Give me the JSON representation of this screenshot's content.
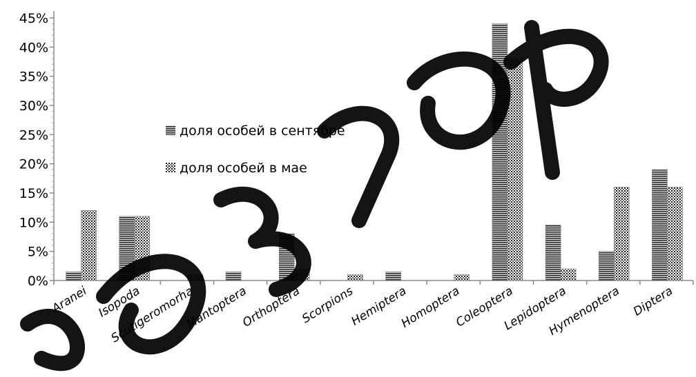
{
  "chart_data": {
    "type": "bar",
    "categories": [
      "Aranei",
      "Isopoda",
      "Scutigeromorha",
      "Mantoptera",
      "Orthoptera",
      "Scorpions",
      "Hemiptera",
      "Homoptera",
      "Coleoptera",
      "Lepidoptera",
      "Hymenoptera",
      "Diptera"
    ],
    "series": [
      {
        "name": "доля особей в сентябре",
        "pattern": "horizontal-lines",
        "values": [
          1.5,
          11,
          0,
          1.5,
          8,
          0,
          1.5,
          0,
          44,
          9.5,
          5,
          19
        ]
      },
      {
        "name": "доля особей в мае",
        "pattern": "dots",
        "values": [
          12,
          11,
          1,
          0,
          2,
          1,
          0,
          1,
          38,
          2,
          16,
          16
        ]
      }
    ],
    "yticks": [
      "0%",
      "5%",
      "10%",
      "15%",
      "20%",
      "25%",
      "30%",
      "35%",
      "40%",
      "45%"
    ],
    "ylim": [
      0,
      45
    ],
    "y_unit": "%",
    "grid": false,
    "legend_position": "inside-left",
    "colors": {
      "bar_dark": "#3a3a3a",
      "bar_light": "#9a9a9a",
      "axis": "#888888",
      "watermark": "#000000"
    }
  }
}
